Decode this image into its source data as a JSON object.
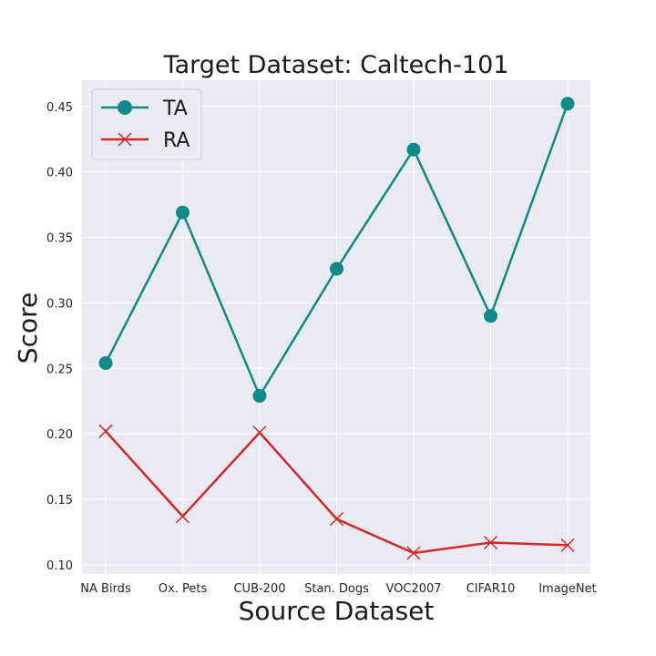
{
  "chart_data": {
    "type": "line",
    "title": "Target Dataset: Caltech-101",
    "xlabel": "Source Dataset",
    "ylabel": "Score",
    "categories": [
      "NA Birds",
      "Ox. Pets",
      "CUB-200",
      "Stan. Dogs",
      "VOC2007",
      "CIFAR10",
      "ImageNet"
    ],
    "ylim": [
      0.093,
      0.47
    ],
    "yticks": [
      "0.10",
      "0.15",
      "0.20",
      "0.25",
      "0.30",
      "0.35",
      "0.40",
      "0.45"
    ],
    "grid": true,
    "legend_position": "top-left",
    "series": [
      {
        "name": "TA",
        "color": "#0e8a8a",
        "marker": "circle",
        "values": [
          0.254,
          0.369,
          0.229,
          0.326,
          0.417,
          0.29,
          0.452
        ]
      },
      {
        "name": "RA",
        "color": "#d62728",
        "marker": "x",
        "values": [
          0.202,
          0.137,
          0.201,
          0.135,
          0.109,
          0.117,
          0.115
        ]
      }
    ]
  }
}
